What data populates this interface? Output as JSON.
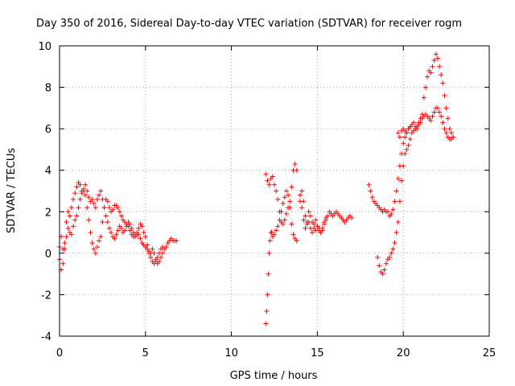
{
  "chart_data": {
    "type": "scatter",
    "title": "Day 350 of 2016, Sidereal Day-to-day VTEC variation (SDTVAR) for receiver rogm",
    "xlabel": "GPS time / hours",
    "ylabel": "SDTVAR / TECUs",
    "xlim": [
      0,
      25
    ],
    "ylim": [
      -4,
      10
    ],
    "xticks": [
      "0",
      "5",
      "10",
      "15",
      "20",
      "25"
    ],
    "yticks": [
      "-4",
      "-2",
      "0",
      "2",
      "4",
      "6",
      "8",
      "10"
    ],
    "grid": true,
    "marker": "+",
    "color": "#ff0000",
    "series": [
      {
        "x": [
          0.0,
          0.1,
          0.2,
          0.3,
          0.4,
          0.5,
          0.6,
          0.7,
          0.8,
          0.9,
          1.0,
          1.1,
          1.2,
          1.3,
          1.4,
          1.5,
          1.6,
          1.7,
          1.8,
          1.9,
          2.0,
          2.1,
          2.2,
          2.3,
          2.4,
          2.5,
          2.6,
          2.7,
          2.8,
          2.9,
          3.0,
          3.1,
          3.2,
          3.3,
          3.4,
          3.5,
          3.6,
          3.7,
          3.8,
          3.9,
          4.0,
          4.1,
          4.2,
          4.3,
          4.4,
          4.5,
          4.6,
          4.7,
          4.8,
          4.9,
          5.0,
          5.1,
          5.2,
          5.3,
          5.4,
          5.5,
          5.6,
          5.7,
          5.8,
          5.9,
          6.0,
          6.1,
          6.2,
          6.3,
          6.4,
          6.5,
          6.6,
          6.7,
          6.8
        ],
        "y": [
          0.3,
          0.8,
          0.2,
          0.5,
          1.5,
          2.0,
          1.8,
          2.2,
          2.6,
          2.9,
          3.2,
          3.4,
          3.3,
          3.0,
          3.1,
          3.3,
          3.0,
          2.7,
          2.5,
          2.6,
          2.4,
          2.2,
          2.6,
          2.8,
          3.0,
          2.6,
          2.2,
          1.8,
          1.5,
          1.2,
          1.0,
          0.8,
          0.7,
          0.9,
          1.1,
          1.3,
          1.2,
          1.0,
          1.1,
          1.3,
          1.5,
          1.4,
          1.2,
          1.0,
          0.8,
          0.9,
          1.2,
          1.4,
          1.3,
          1.0,
          0.8,
          0.4,
          0.1,
          0.0,
          0.2,
          0.0,
          -0.3,
          -0.5,
          -0.4,
          -0.2,
          0.0,
          0.2,
          0.3,
          0.5,
          0.6,
          0.7,
          0.6,
          0.6,
          0.6
        ]
      },
      {
        "x": [
          0.0,
          0.1,
          0.2,
          0.3,
          0.4,
          0.5,
          0.6,
          0.7,
          0.8,
          0.9,
          1.0,
          1.1,
          1.2,
          1.3,
          1.4,
          1.5,
          1.6,
          1.7,
          1.8,
          1.9,
          2.0,
          2.1,
          2.2,
          2.3,
          2.4,
          2.5,
          2.6,
          2.7,
          2.8,
          2.9,
          3.0,
          3.1,
          3.2,
          3.3,
          3.4,
          3.5,
          3.6,
          3.7,
          3.8,
          3.9,
          4.0,
          4.1,
          4.2,
          4.3,
          4.4,
          4.5,
          4.6,
          4.7,
          4.8,
          4.9,
          5.0,
          5.1,
          5.2,
          5.3,
          5.4,
          5.5,
          5.6,
          5.7,
          5.8,
          5.9,
          6.0
        ],
        "y": [
          -0.3,
          -0.8,
          -0.5,
          0.2,
          0.8,
          1.2,
          1.0,
          0.9,
          1.3,
          1.6,
          1.8,
          2.2,
          2.6,
          2.9,
          3.0,
          2.8,
          2.2,
          1.6,
          1.0,
          0.5,
          0.2,
          0.0,
          0.3,
          0.6,
          0.8,
          1.5,
          2.2,
          2.6,
          2.5,
          2.2,
          2.0,
          2.1,
          2.3,
          2.3,
          2.2,
          2.0,
          1.8,
          1.6,
          1.5,
          1.4,
          1.3,
          1.1,
          0.9,
          0.8,
          0.9,
          1.0,
          0.9,
          0.7,
          0.5,
          0.4,
          0.3,
          0.2,
          0.0,
          -0.2,
          -0.4,
          -0.5,
          -0.4,
          -0.2,
          0.0,
          0.2,
          0.3
        ]
      },
      {
        "x": [
          12.0,
          12.05,
          12.1,
          12.15,
          12.2,
          12.25,
          12.3,
          12.35,
          12.4,
          12.5,
          12.6,
          12.7,
          12.8,
          12.9,
          13.0,
          13.1,
          13.2,
          13.3,
          13.4,
          13.5,
          13.6,
          13.7,
          13.8
        ],
        "y": [
          -3.4,
          -2.8,
          -2.0,
          -1.0,
          0.0,
          0.6,
          1.0,
          1.0,
          0.8,
          0.9,
          1.1,
          1.3,
          1.6,
          2.0,
          2.4,
          2.7,
          3.0,
          2.8,
          2.2,
          1.4,
          0.9,
          0.7,
          0.6
        ]
      },
      {
        "x": [
          12.0,
          12.1,
          12.2,
          12.3,
          12.4,
          12.5,
          12.6,
          12.7,
          12.8,
          12.9,
          13.0,
          13.1,
          13.2,
          13.3,
          13.4,
          13.5,
          13.6,
          13.7,
          13.8
        ],
        "y": [
          3.8,
          3.5,
          3.3,
          3.6,
          3.7,
          3.3,
          3.0,
          2.6,
          2.0,
          1.5,
          1.4,
          1.6,
          1.9,
          2.2,
          2.5,
          3.2,
          4.0,
          4.3,
          4.0
        ]
      },
      {
        "x": [
          14.0,
          14.1,
          14.2,
          14.3,
          14.4,
          14.5,
          14.6,
          14.7,
          14.8,
          14.9,
          15.0,
          15.1,
          15.2,
          15.3,
          15.4,
          15.5,
          15.6,
          15.7,
          15.8,
          15.9,
          16.0,
          16.1,
          16.2,
          16.3,
          16.4,
          16.5,
          16.6,
          16.7,
          16.8,
          16.9,
          17.0
        ],
        "y": [
          2.5,
          2.2,
          1.6,
          1.2,
          1.5,
          2.0,
          1.8,
          1.5,
          1.2,
          1.1,
          1.3,
          1.2,
          1.0,
          1.1,
          1.4,
          1.6,
          1.8,
          2.0,
          1.9,
          1.8,
          1.9,
          2.0,
          1.9,
          1.8,
          1.7,
          1.6,
          1.5,
          1.6,
          1.7,
          1.8,
          1.7
        ]
      },
      {
        "x": [
          14.0,
          14.1,
          14.2,
          14.3,
          14.4,
          14.5,
          14.6,
          14.7,
          14.8,
          14.9,
          15.0,
          15.1,
          15.2,
          15.3,
          15.4,
          15.5
        ],
        "y": [
          2.8,
          3.0,
          2.5,
          1.8,
          1.4,
          1.5,
          1.2,
          1.0,
          1.4,
          1.6,
          1.3,
          1.1,
          1.0,
          1.2,
          1.5,
          1.7
        ]
      },
      {
        "x": [
          18.0,
          18.1,
          18.2,
          18.3,
          18.4,
          18.5,
          18.6,
          18.7,
          18.8,
          18.9,
          19.0,
          19.1,
          19.2,
          19.3,
          19.4,
          19.5,
          19.6,
          19.7,
          19.8,
          19.9,
          20.0,
          20.1,
          20.2,
          20.3,
          20.4,
          20.5,
          20.6,
          20.7,
          20.8,
          20.9,
          21.0,
          21.1,
          21.2,
          21.3,
          21.4,
          21.5,
          21.6,
          21.7,
          21.8,
          21.9,
          22.0,
          22.1,
          22.2,
          22.3,
          22.4,
          22.5,
          22.6,
          22.7,
          22.8,
          22.9
        ],
        "y": [
          3.3,
          3.0,
          2.7,
          2.5,
          2.4,
          2.3,
          2.2,
          2.1,
          2.0,
          2.1,
          2.0,
          2.0,
          1.8,
          1.9,
          2.1,
          2.5,
          3.0,
          3.6,
          4.2,
          4.8,
          5.3,
          5.6,
          5.8,
          6.0,
          6.1,
          6.2,
          6.3,
          6.1,
          6.0,
          6.2,
          6.3,
          6.5,
          6.6,
          6.7,
          6.6,
          6.5,
          6.4,
          6.6,
          6.8,
          7.0,
          7.0,
          6.8,
          6.6,
          6.3,
          6.0,
          5.8,
          5.6,
          5.5,
          5.5,
          5.6
        ]
      },
      {
        "x": [
          18.5,
          18.6,
          18.7,
          18.8,
          18.9,
          19.0,
          19.1,
          19.2,
          19.3,
          19.4,
          19.5,
          19.6,
          19.7,
          19.8,
          19.9,
          20.0,
          20.1,
          20.2,
          20.3,
          20.4,
          20.5,
          20.6,
          20.7,
          20.8,
          20.9,
          21.0,
          21.1,
          21.2,
          21.3,
          21.4,
          21.5,
          21.6,
          21.7,
          21.8,
          21.9,
          22.0,
          22.1,
          22.2,
          22.3,
          22.4,
          22.5,
          22.6,
          22.7,
          22.8,
          22.9
        ],
        "y": [
          -0.2,
          -0.6,
          -0.9,
          -1.0,
          -0.8,
          -0.5,
          -0.3,
          -0.2,
          0.0,
          0.2,
          0.5,
          1.0,
          1.5,
          2.5,
          3.5,
          4.2,
          4.8,
          5.0,
          5.2,
          5.5,
          5.8,
          5.9,
          6.0,
          6.1,
          6.3,
          6.5,
          6.7,
          7.5,
          8.0,
          8.5,
          8.8,
          8.7,
          9.0,
          9.3,
          9.6,
          9.4,
          9.0,
          8.6,
          8.2,
          7.6,
          7.0,
          6.5,
          6.0,
          5.8,
          5.6
        ]
      },
      {
        "x": [
          19.7,
          19.8,
          19.9,
          20.0,
          20.1,
          20.2,
          20.3,
          20.4
        ],
        "y": [
          5.8,
          5.6,
          5.9,
          6.0,
          5.9,
          5.8,
          6.0,
          6.1
        ]
      }
    ]
  }
}
